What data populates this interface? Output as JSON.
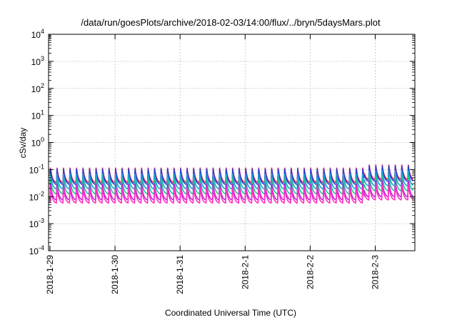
{
  "chart_data": {
    "type": "line",
    "title": "/data/run/goesPlots/archive/2018-02-03/14:00/flux/../bryn/5daysMars.plot",
    "xlabel": "Coordinated Universal Time (UTC)",
    "ylabel": "cSv/day",
    "yscale": "log",
    "ylim": [
      0.0001,
      10000
    ],
    "xlim": [
      "2018-01-29",
      "2018-02-03 14:00"
    ],
    "x_ticks": [
      "2018-1-29",
      "2018-1-30",
      "2018-1-31",
      "2018-2-1",
      "2018-2-2",
      "2018-2-3"
    ],
    "y_ticks": [
      {
        "base": "10",
        "exp": "-4"
      },
      {
        "base": "10",
        "exp": "-3"
      },
      {
        "base": "10",
        "exp": "-2"
      },
      {
        "base": "10",
        "exp": "-1"
      },
      {
        "base": "10",
        "exp": "0"
      },
      {
        "base": "10",
        "exp": "1"
      },
      {
        "base": "10",
        "exp": "2"
      },
      {
        "base": "10",
        "exp": "3"
      },
      {
        "base": "10",
        "exp": "4"
      }
    ],
    "grid": true,
    "legend": "none",
    "cycles_per_day": 10,
    "series": [
      {
        "color": "#e0194f",
        "peak": 0.115,
        "trough": 0.033
      },
      {
        "color": "#2a3fd6",
        "peak": 0.105,
        "trough": 0.028
      },
      {
        "color": "#18a3d6",
        "peak": 0.07,
        "trough": 0.019
      },
      {
        "color": "#1fc88f",
        "peak": 0.046,
        "trough": 0.0125
      },
      {
        "color": "#c020d8",
        "peak": 0.03,
        "trough": 0.0075
      },
      {
        "color": "#ff2fc4",
        "peak": 0.022,
        "trough": 0.0058
      }
    ],
    "late_enhancement": {
      "start": "2018-02-02 20:00",
      "factor": 1.3
    }
  }
}
